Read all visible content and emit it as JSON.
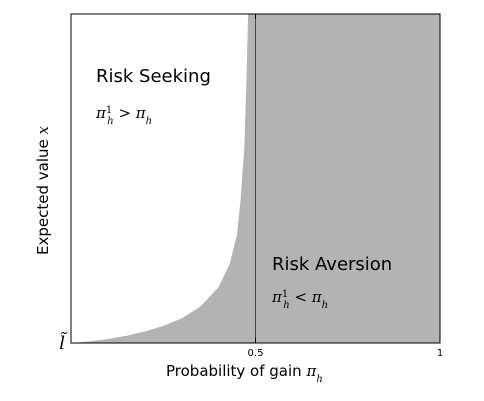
{
  "chart_data": {
    "type": "area",
    "xlabel": "Probability of gain π_h",
    "ylabel": "Expected value x",
    "x_ticks": [
      {
        "value": 0.5,
        "label": "0.5"
      },
      {
        "value": 1,
        "label": "1"
      }
    ],
    "y_ticks": [
      {
        "value": 0,
        "label": "l̃"
      }
    ],
    "xlim": [
      0,
      1
    ],
    "ylim": [
      0,
      1
    ],
    "grid": false,
    "boundary_curve": {
      "x": [
        0.0,
        0.05,
        0.1,
        0.15,
        0.2,
        0.25,
        0.3,
        0.35,
        0.4,
        0.43,
        0.45,
        0.46,
        0.47,
        0.475,
        0.48
      ],
      "y": [
        0.0,
        0.005,
        0.012,
        0.022,
        0.035,
        0.052,
        0.075,
        0.11,
        0.17,
        0.24,
        0.33,
        0.44,
        0.6,
        0.78,
        1.0
      ]
    },
    "vertical_line_x": 0.5,
    "regions": [
      {
        "label": "Risk Seeking",
        "condition": "π_h^1 > π_h",
        "fill": "#ffffff"
      },
      {
        "label": "Risk Aversion",
        "condition": "π_h^1 < π_h",
        "fill": "#b3b3b3"
      }
    ],
    "colors": {
      "shaded": "#b3b3b3",
      "axes": "#000000"
    }
  }
}
